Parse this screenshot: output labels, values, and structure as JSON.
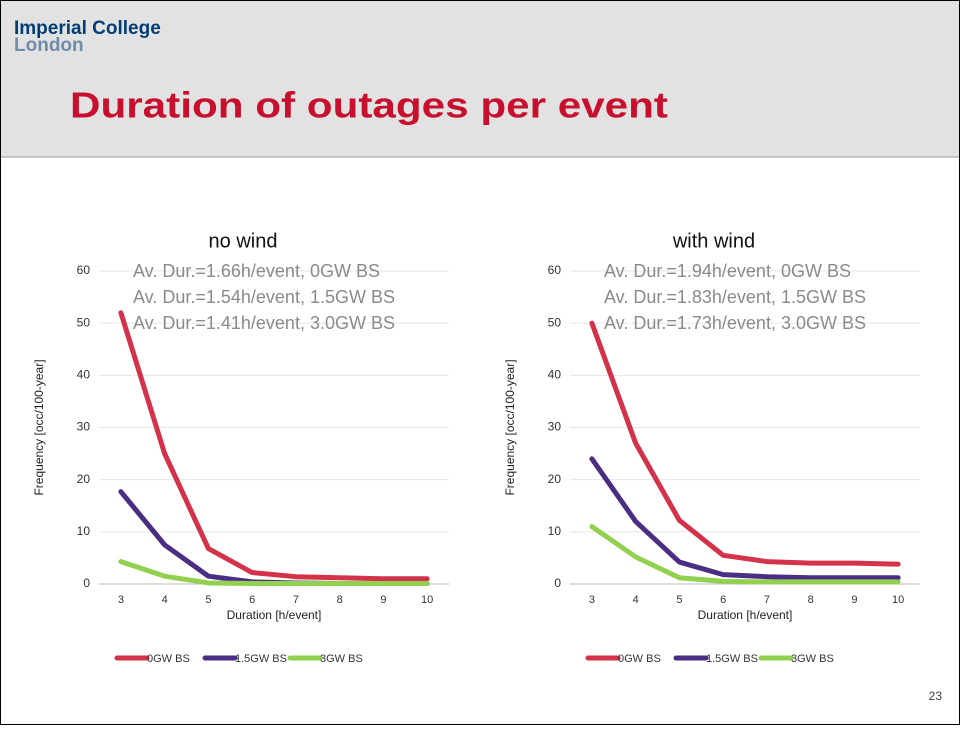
{
  "header": {
    "logo": [
      "Imperial College",
      "London"
    ],
    "title": "Duration of outages per event"
  },
  "page_number": "23",
  "chart_data": [
    {
      "type": "line",
      "title": "no wind",
      "x_label": "Duration [h/event]",
      "y_label": "Frequency [occ/100-year]",
      "annotations": [
        "Av. Dur.=1.66h/event, 0GW BS",
        "Av. Dur.=1.54h/event, 1.5GW BS",
        "Av. Dur.=1.41h/event, 3.0GW BS"
      ],
      "categories": [
        "3",
        "4",
        "5",
        "6",
        "7",
        "8",
        "9",
        "10"
      ],
      "ylim": [
        0,
        60
      ],
      "yticks": [
        0,
        10,
        20,
        30,
        40,
        50,
        60
      ],
      "grid": true,
      "legend": "bottom",
      "series": [
        {
          "name": "0GW BS",
          "color": "#d4324a",
          "values": [
            52,
            25,
            6.8,
            2.2,
            1.4,
            1.2,
            1.0,
            1.0
          ]
        },
        {
          "name": "1.5GW BS",
          "color": "#4b2e83",
          "values": [
            17.7,
            7.5,
            1.5,
            0.4,
            0.2,
            0.1,
            0.1,
            0.1
          ]
        },
        {
          "name": "3GW BS",
          "color": "#92d050",
          "values": [
            4.3,
            1.5,
            0.2,
            0.1,
            0.1,
            0.1,
            0.1,
            0.1
          ]
        }
      ]
    },
    {
      "type": "line",
      "title": "with wind",
      "x_label": "Duration [h/event]",
      "y_label": "Frequency [occ/100-year]",
      "annotations": [
        "Av. Dur.=1.94h/event, 0GW BS",
        "Av. Dur.=1.83h/event, 1.5GW BS",
        "Av. Dur.=1.73h/event, 3.0GW BS"
      ],
      "categories": [
        "3",
        "4",
        "5",
        "6",
        "7",
        "8",
        "9",
        "10"
      ],
      "ylim": [
        0,
        60
      ],
      "yticks": [
        0,
        10,
        20,
        30,
        40,
        50,
        60
      ],
      "grid": true,
      "legend": "bottom",
      "series": [
        {
          "name": "0GW BS",
          "color": "#d4324a",
          "values": [
            50,
            27,
            12.2,
            5.5,
            4.3,
            4.0,
            4.0,
            3.8
          ]
        },
        {
          "name": "1.5GW BS",
          "color": "#4b2e83",
          "values": [
            24,
            12,
            4.2,
            1.8,
            1.4,
            1.2,
            1.2,
            1.2
          ]
        },
        {
          "name": "3GW BS",
          "color": "#92d050",
          "values": [
            11,
            5.2,
            1.2,
            0.5,
            0.4,
            0.4,
            0.4,
            0.4
          ]
        }
      ]
    }
  ]
}
